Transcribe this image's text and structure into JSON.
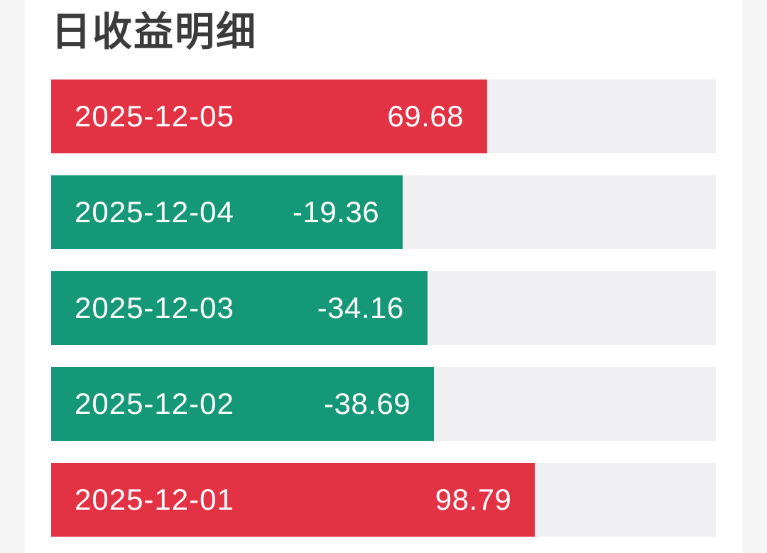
{
  "page": {
    "background_color": "#ffffff",
    "edge_strip_color": "#f5f5f5"
  },
  "chart_data": {
    "type": "bar",
    "orientation": "horizontal",
    "title": "日收益明细",
    "categories": [
      "2025-12-05",
      "2025-12-04",
      "2025-12-03",
      "2025-12-02",
      "2025-12-01"
    ],
    "values": [
      69.68,
      -19.36,
      -34.16,
      -38.69,
      98.79
    ],
    "value_labels": [
      "69.68",
      "-19.36",
      "-34.16",
      "-38.69",
      "98.79"
    ],
    "bar_fill_pct": [
      65.6,
      52.9,
      56.6,
      57.6,
      72.8
    ],
    "positive_color": "#e23244",
    "negative_color": "#149877",
    "track_color": "#f0f0f3",
    "label_text_color": "#ffffff",
    "title_color": "#3b3b3b",
    "legend": "none",
    "grid": false,
    "axis_labels": "none"
  }
}
